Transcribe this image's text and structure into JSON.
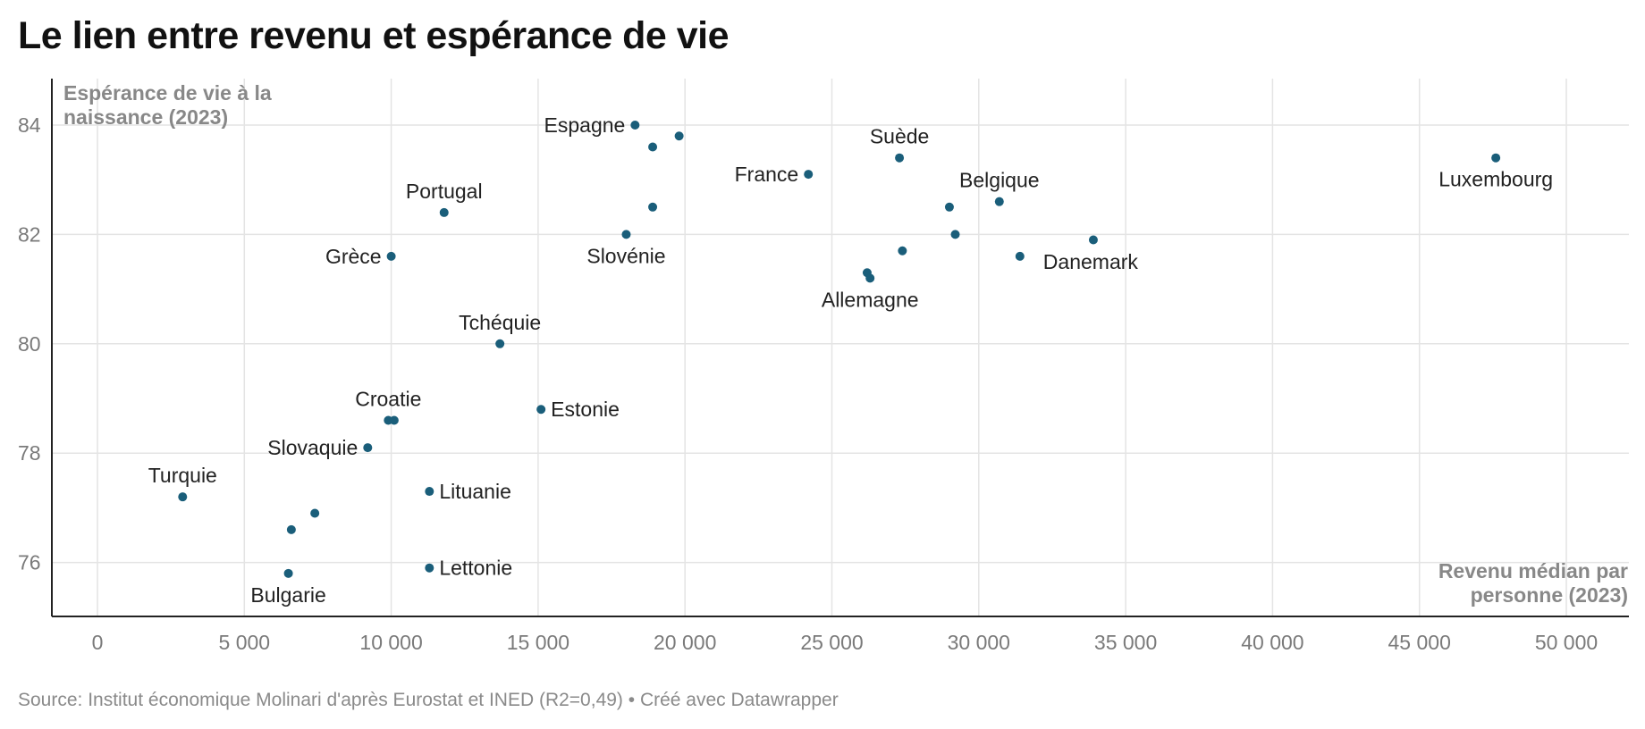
{
  "title": "Le lien entre revenu et espérance de vie",
  "source": "Source: Institut économique Molinari d'après Eurostat et INED (R2=0,49) • Créé avec Datawrapper",
  "colors": {
    "point": "#1a5e7a",
    "grid": "#e4e4e4",
    "axis": "#222222"
  },
  "chart_data": {
    "type": "scatter",
    "title": "Le lien entre revenu et espérance de vie",
    "ylabel": [
      "Espérance de vie à la",
      "naissance (2023)"
    ],
    "xlabel": [
      "Revenu médian par",
      "personne (2023)"
    ],
    "xlim": [
      -1500,
      52000
    ],
    "ylim": [
      75,
      84.8
    ],
    "xticks": [
      0,
      5000,
      10000,
      15000,
      20000,
      25000,
      30000,
      35000,
      40000,
      45000,
      50000
    ],
    "xtick_labels": [
      "0",
      "5 000",
      "10 000",
      "15 000",
      "20 000",
      "25 000",
      "30 000",
      "35 000",
      "40 000",
      "45 000",
      "50 000"
    ],
    "yticks": [
      76,
      78,
      80,
      82,
      84
    ],
    "ytick_labels": [
      "76",
      "78",
      "80",
      "82",
      "84"
    ],
    "grid": true,
    "points": [
      {
        "x": 47600,
        "y": 83.4,
        "label": "Luxembourg",
        "pos": "below"
      },
      {
        "x": 18300,
        "y": 84.0,
        "label": "Espagne",
        "pos": "left"
      },
      {
        "x": 19800,
        "y": 83.8,
        "label": "",
        "pos": ""
      },
      {
        "x": 18900,
        "y": 83.6,
        "label": "",
        "pos": ""
      },
      {
        "x": 27300,
        "y": 83.4,
        "label": "Suède",
        "pos": "above"
      },
      {
        "x": 24200,
        "y": 83.1,
        "label": "France",
        "pos": "left"
      },
      {
        "x": 30700,
        "y": 82.6,
        "label": "Belgique",
        "pos": "above"
      },
      {
        "x": 29000,
        "y": 82.5,
        "label": "",
        "pos": ""
      },
      {
        "x": 18900,
        "y": 82.5,
        "label": "",
        "pos": ""
      },
      {
        "x": 11800,
        "y": 82.4,
        "label": "Portugal",
        "pos": "above"
      },
      {
        "x": 29200,
        "y": 82.0,
        "label": "",
        "pos": ""
      },
      {
        "x": 18000,
        "y": 82.0,
        "label": "Slovénie",
        "pos": "below"
      },
      {
        "x": 33900,
        "y": 81.9,
        "label": "",
        "pos": ""
      },
      {
        "x": 27400,
        "y": 81.7,
        "label": "",
        "pos": ""
      },
      {
        "x": 10000,
        "y": 81.6,
        "label": "Grèce",
        "pos": "left"
      },
      {
        "x": 31400,
        "y": 81.6,
        "label": "Danemark",
        "pos": "below-right"
      },
      {
        "x": 26200,
        "y": 81.3,
        "label": "",
        "pos": ""
      },
      {
        "x": 26300,
        "y": 81.2,
        "label": "Allemagne",
        "pos": "below"
      },
      {
        "x": 13700,
        "y": 80.0,
        "label": "Tchéquie",
        "pos": "above"
      },
      {
        "x": 15100,
        "y": 78.8,
        "label": "Estonie",
        "pos": "right"
      },
      {
        "x": 9900,
        "y": 78.6,
        "label": "Croatie",
        "pos": "above"
      },
      {
        "x": 10100,
        "y": 78.6,
        "label": "",
        "pos": ""
      },
      {
        "x": 9200,
        "y": 78.1,
        "label": "Slovaquie",
        "pos": "left"
      },
      {
        "x": 11300,
        "y": 77.3,
        "label": "Lituanie",
        "pos": "right"
      },
      {
        "x": 2900,
        "y": 77.2,
        "label": "Turquie",
        "pos": "above"
      },
      {
        "x": 7400,
        "y": 76.9,
        "label": "",
        "pos": ""
      },
      {
        "x": 6600,
        "y": 76.6,
        "label": "",
        "pos": ""
      },
      {
        "x": 11300,
        "y": 75.9,
        "label": "Lettonie",
        "pos": "right"
      },
      {
        "x": 6500,
        "y": 75.8,
        "label": "Bulgarie",
        "pos": "below"
      }
    ]
  }
}
